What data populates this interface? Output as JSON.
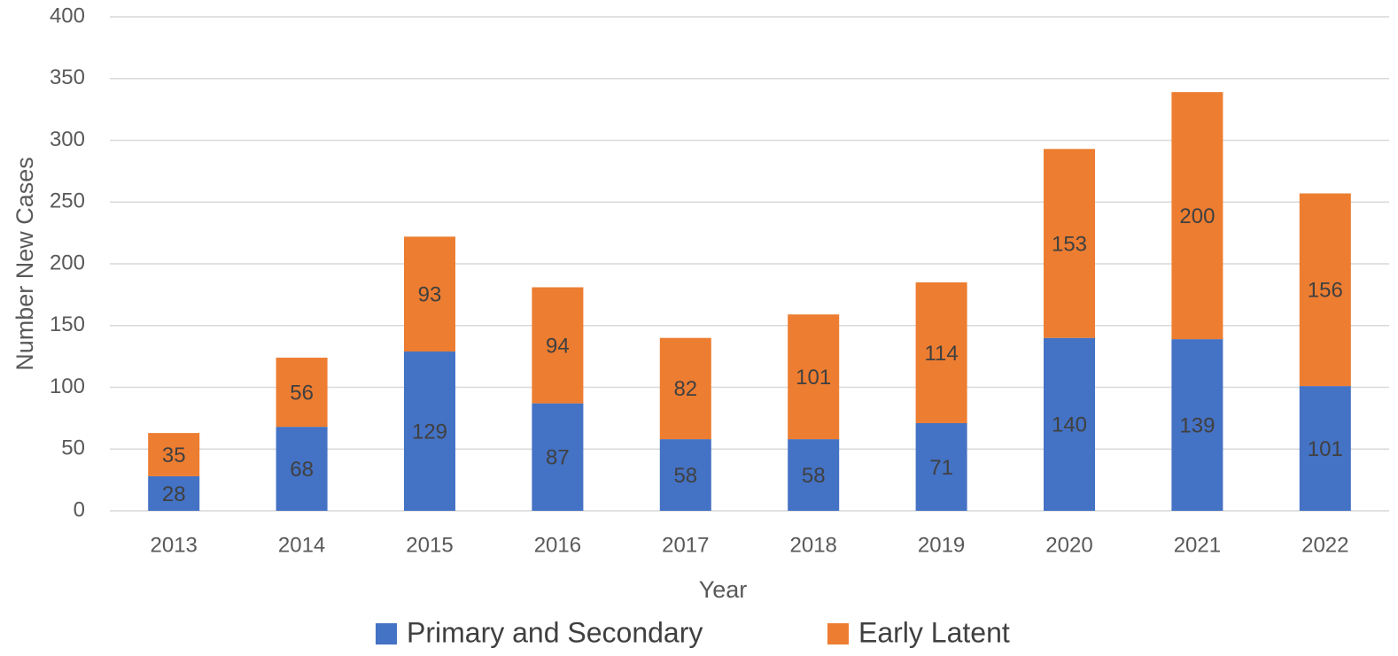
{
  "chart_data": {
    "type": "bar",
    "stacked": true,
    "x_label": "Year",
    "y_label": "Number New Cases",
    "categories": [
      "2013",
      "2014",
      "2015",
      "2016",
      "2017",
      "2018",
      "2019",
      "2020",
      "2021",
      "2022"
    ],
    "series": [
      {
        "name": "Primary and Secondary",
        "color": "#4472c4",
        "values": [
          28,
          68,
          129,
          87,
          58,
          58,
          71,
          140,
          139,
          101
        ]
      },
      {
        "name": "Early Latent",
        "color": "#ed7d31",
        "values": [
          35,
          56,
          93,
          94,
          82,
          101,
          114,
          153,
          200,
          156
        ]
      }
    ],
    "ylim": [
      0,
      400
    ],
    "yticks": [
      0,
      50,
      100,
      150,
      200,
      250,
      300,
      350,
      400
    ],
    "grid": true,
    "legend": "bottom",
    "data_labels": true
  }
}
